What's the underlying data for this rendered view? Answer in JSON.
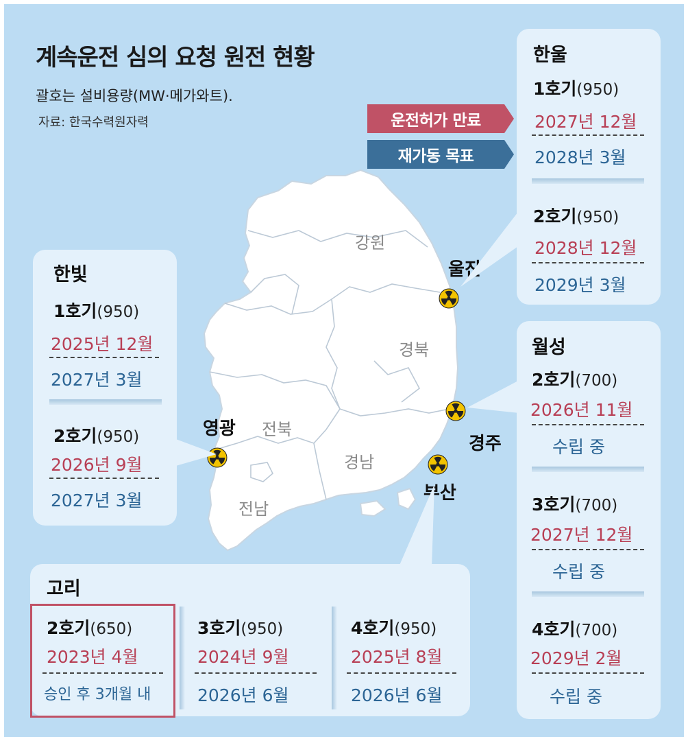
{
  "title": "계속운전 심의 요청 원전 현황",
  "subtitle": "괄호는 설비용량(MW·메가와트).",
  "source": "자료: 한국수력원자력",
  "legend": {
    "license_expiry": "운전허가 만료",
    "restart_target": "재가동 목표"
  },
  "colors": {
    "expiry": "#b83f55",
    "restart": "#2c6595",
    "background": "#bcdcf3",
    "box": "#e4f1fb"
  },
  "map": {
    "regions": {
      "gangwon": "강원",
      "gyeongbuk": "경북",
      "jeonbuk": "전북",
      "jeonnam": "전남",
      "gyeongnam": "경남"
    },
    "cities": {
      "uljin": "울진",
      "yeonggwang": "영광",
      "gyeongju": "경주",
      "busan": "부산"
    },
    "marker_icon": "radiation-icon"
  },
  "hanul": {
    "name": "한울",
    "units": [
      {
        "unit": "1호기",
        "cap": "(950)",
        "expiry": "2027년 12월",
        "restart": "2028년 3월"
      },
      {
        "unit": "2호기",
        "cap": "(950)",
        "expiry": "2028년 12월",
        "restart": "2029년 3월"
      }
    ]
  },
  "hanbit": {
    "name": "한빛",
    "units": [
      {
        "unit": "1호기",
        "cap": "(950)",
        "expiry": "2025년 12월",
        "restart": "2027년 3월"
      },
      {
        "unit": "2호기",
        "cap": "(950)",
        "expiry": "2026년 9월",
        "restart": "2027년 3월"
      }
    ]
  },
  "wolseong": {
    "name": "월성",
    "units": [
      {
        "unit": "2호기",
        "cap": "(700)",
        "expiry": "2026년 11월",
        "restart": "수립 중"
      },
      {
        "unit": "3호기",
        "cap": "(700)",
        "expiry": "2027년 12월",
        "restart": "수립 중"
      },
      {
        "unit": "4호기",
        "cap": "(700)",
        "expiry": "2029년 2월",
        "restart": "수립 중"
      }
    ]
  },
  "kori": {
    "name": "고리",
    "units": [
      {
        "unit": "2호기",
        "cap": "(650)",
        "expiry": "2023년 4월",
        "restart": "승인 후 3개월 내"
      },
      {
        "unit": "3호기",
        "cap": "(950)",
        "expiry": "2024년 9월",
        "restart": "2026년 6월"
      },
      {
        "unit": "4호기",
        "cap": "(950)",
        "expiry": "2025년 8월",
        "restart": "2026년 6월"
      }
    ]
  }
}
